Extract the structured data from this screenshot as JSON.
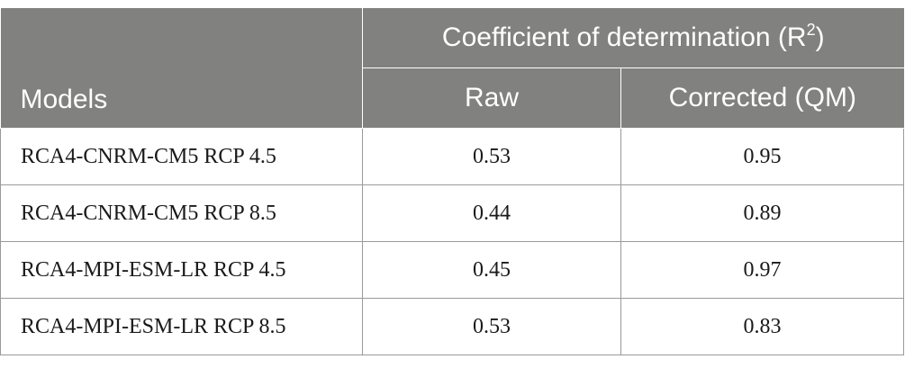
{
  "table": {
    "header": {
      "models_label": "Models",
      "group_label": "Coefficient of determination (R",
      "group_sup": "2",
      "group_close": ")",
      "raw_label": "Raw",
      "corrected_label": "Corrected (QM)"
    },
    "rows": [
      {
        "model": "RCA4-CNRM-CM5 RCP 4.5",
        "raw": "0.53",
        "corrected": "0.95"
      },
      {
        "model": "RCA4-CNRM-CM5 RCP 8.5",
        "raw": "0.44",
        "corrected": "0.89"
      },
      {
        "model": "RCA4-MPI-ESM-LR RCP 4.5",
        "raw": "0.45",
        "corrected": "0.97"
      },
      {
        "model": "RCA4-MPI-ESM-LR RCP 8.5",
        "raw": "0.53",
        "corrected": "0.83"
      }
    ],
    "colors": {
      "header_bg": "#818180",
      "header_text": "#ffffff",
      "grid": "#9a9a9a"
    }
  }
}
